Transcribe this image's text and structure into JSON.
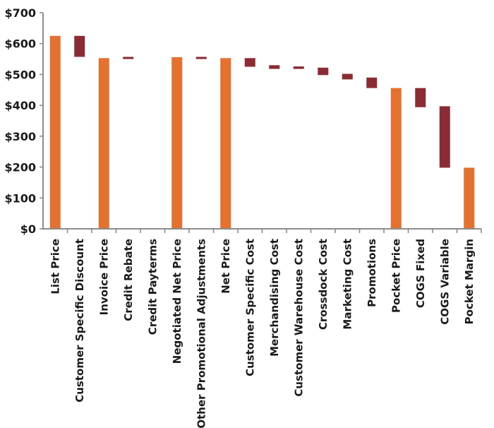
{
  "chart_data": {
    "type": "bar",
    "subtype": "waterfall",
    "ylim": [
      0,
      700
    ],
    "y_ticks": [
      0,
      100,
      200,
      300,
      400,
      500,
      600,
      700
    ],
    "y_tick_labels": [
      "$0",
      "$100",
      "$200",
      "$300",
      "$400",
      "$500",
      "$600",
      "$700"
    ],
    "grid": false,
    "colors": {
      "total": "#e4712f",
      "decrease": "#8b2c34"
    },
    "categories": [
      "List Price",
      "Customer Specific Discount",
      "Invoice Price",
      "Credit Rebate",
      "Credit Payterms",
      "Negotiated Net Price",
      "Other Promotional Adjustments",
      "Net Price",
      "Customer Specific Cost",
      "Merchandising Cost",
      "Customer Warehouse Cost",
      "Crossdock Cost",
      "Marketing Cost",
      "Promotions",
      "Pocket Price",
      "COGS Fixed",
      "COGS Variable",
      "Pocket Margin"
    ],
    "bars": [
      {
        "kind": "total",
        "start": 0,
        "end": 625
      },
      {
        "kind": "decrease",
        "start": 625,
        "end": 557
      },
      {
        "kind": "total",
        "start": 0,
        "end": 553
      },
      {
        "kind": "decrease",
        "start": 557,
        "end": 550
      },
      {
        "kind": "none",
        "start": 550,
        "end": 550
      },
      {
        "kind": "total",
        "start": 0,
        "end": 556
      },
      {
        "kind": "decrease",
        "start": 557,
        "end": 550
      },
      {
        "kind": "total",
        "start": 0,
        "end": 553
      },
      {
        "kind": "decrease",
        "start": 553,
        "end": 525
      },
      {
        "kind": "decrease",
        "start": 530,
        "end": 518
      },
      {
        "kind": "decrease",
        "start": 526,
        "end": 518
      },
      {
        "kind": "decrease",
        "start": 522,
        "end": 498
      },
      {
        "kind": "decrease",
        "start": 502,
        "end": 484
      },
      {
        "kind": "decrease",
        "start": 490,
        "end": 456
      },
      {
        "kind": "total",
        "start": 0,
        "end": 456
      },
      {
        "kind": "decrease",
        "start": 456,
        "end": 394
      },
      {
        "kind": "decrease",
        "start": 397,
        "end": 198
      },
      {
        "kind": "total",
        "start": 0,
        "end": 198
      }
    ]
  }
}
